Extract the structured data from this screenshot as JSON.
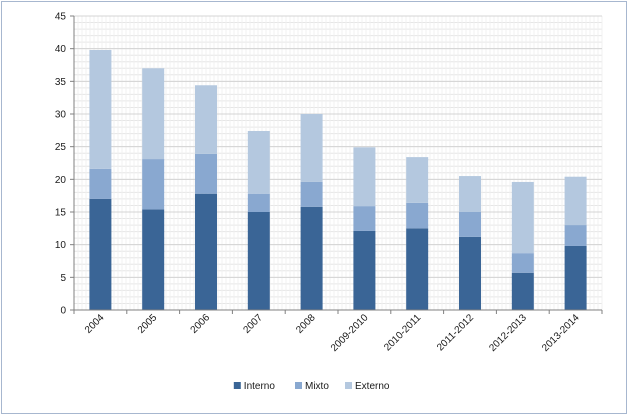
{
  "chart_data": {
    "type": "bar",
    "stacked": true,
    "categories": [
      "2004",
      "2005",
      "2006",
      "2007",
      "2008",
      "2009-2010",
      "2010-2011",
      "2011-2012",
      "2012-2013",
      "2013-2014"
    ],
    "series": [
      {
        "name": "Interno",
        "values": [
          17.0,
          15.4,
          17.8,
          15.0,
          15.8,
          12.1,
          12.5,
          11.2,
          5.7,
          9.8
        ]
      },
      {
        "name": "Mixto",
        "values": [
          4.6,
          7.7,
          6.1,
          2.8,
          3.8,
          3.8,
          3.9,
          3.8,
          3.0,
          3.2
        ]
      },
      {
        "name": "Externo",
        "values": [
          18.2,
          13.9,
          10.5,
          9.6,
          10.4,
          9.0,
          7.0,
          5.5,
          10.9,
          7.4
        ]
      }
    ],
    "colors": [
      "#3a6596",
      "#89a8d0",
      "#b4c8df"
    ],
    "ylim": [
      0,
      45
    ],
    "yticks": [
      0,
      5,
      10,
      15,
      20,
      25,
      30,
      35,
      40,
      45
    ],
    "grid": true,
    "legend_position": "bottom",
    "title": "",
    "xlabel": "",
    "ylabel": ""
  }
}
